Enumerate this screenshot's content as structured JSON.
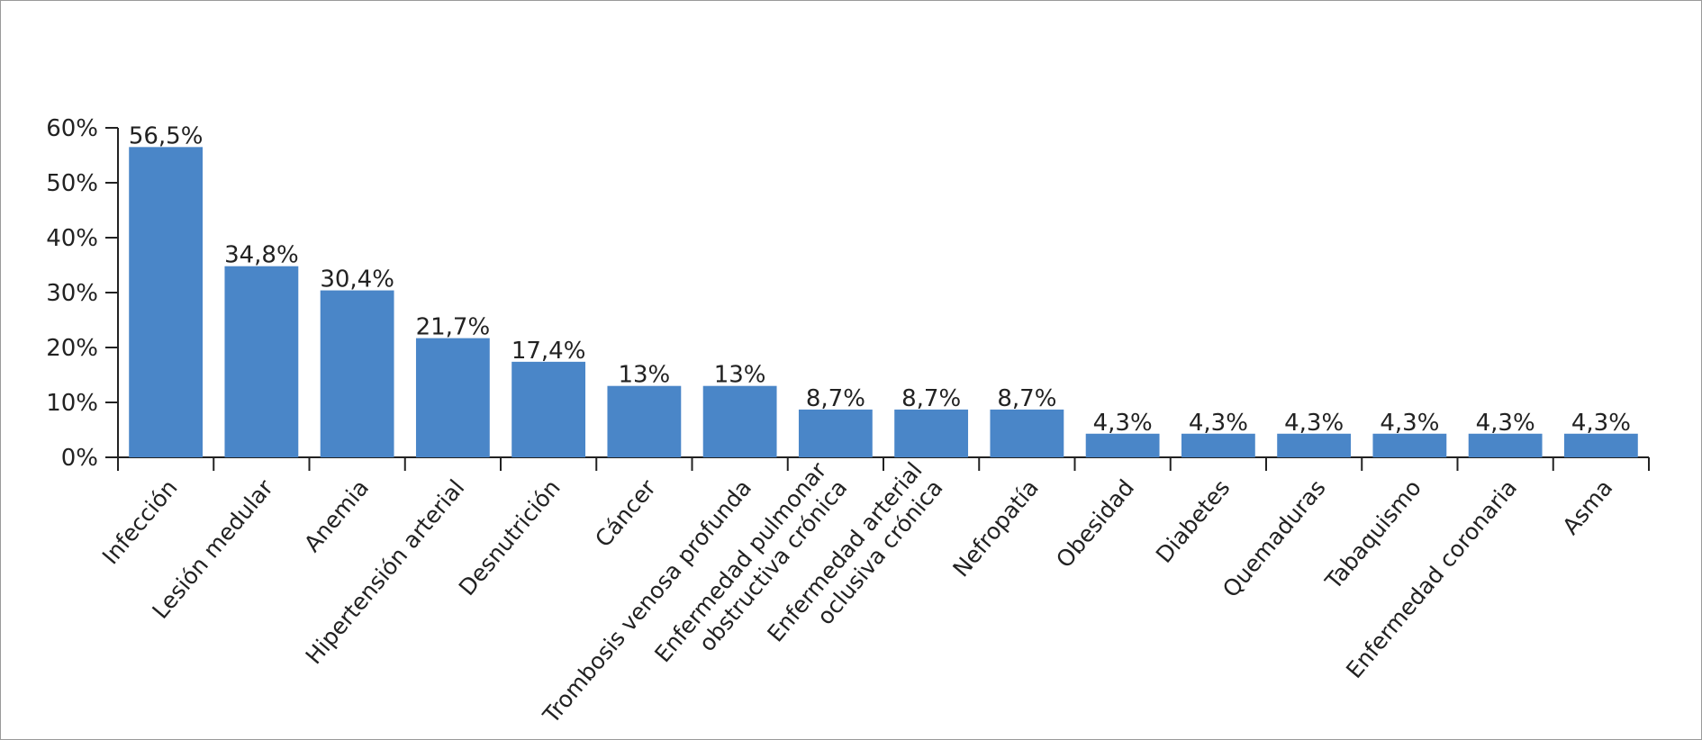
{
  "chart_data": {
    "type": "bar",
    "title": "",
    "xlabel": "",
    "ylabel": "",
    "ylim": [
      0,
      60
    ],
    "yticks": [
      "0%",
      "10%",
      "20%",
      "30%",
      "40%",
      "50%",
      "60%"
    ],
    "grid": false,
    "legend": "none",
    "bar_color": "#4a86c8",
    "categories": [
      [
        "Infección"
      ],
      [
        "Lesión medular"
      ],
      [
        "Anemia"
      ],
      [
        "Hipertensión arterial"
      ],
      [
        "Desnutrición"
      ],
      [
        "Cáncer"
      ],
      [
        "Trombosis venosa profunda"
      ],
      [
        "Enfermedad pulmonar",
        "obstructiva crónica"
      ],
      [
        "Enfermedad arterial",
        "oclusiva crónica"
      ],
      [
        "Nefropatía"
      ],
      [
        "Obesidad"
      ],
      [
        "Diabetes"
      ],
      [
        "Quemaduras"
      ],
      [
        "Tabaquismo"
      ],
      [
        "Enfermedad coronaria"
      ],
      [
        "Asma"
      ]
    ],
    "values": [
      56.5,
      34.8,
      30.4,
      21.7,
      17.4,
      13,
      13,
      8.7,
      8.7,
      8.7,
      4.3,
      4.3,
      4.3,
      4.3,
      4.3,
      4.3
    ],
    "value_labels": [
      "56,5%",
      "34,8%",
      "30,4%",
      "21,7%",
      "17,4%",
      "13%",
      "13%",
      "8,7%",
      "8,7%",
      "8,7%",
      "4,3%",
      "4,3%",
      "4,3%",
      "4,3%",
      "4,3%",
      "4,3%"
    ]
  }
}
